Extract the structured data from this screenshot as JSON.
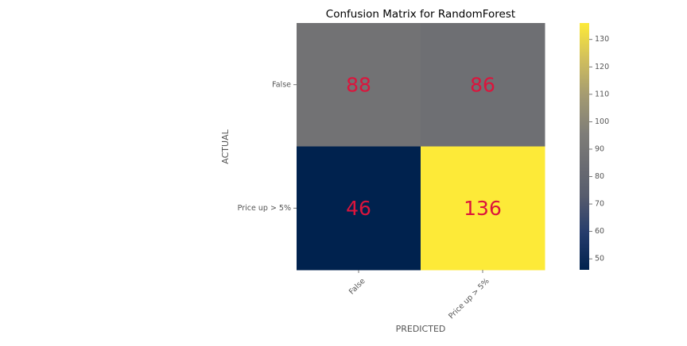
{
  "chart_data": {
    "type": "heatmap",
    "title": "Confusion Matrix for RandomForest",
    "xlabel": "PREDICTED",
    "ylabel": "ACTUAL",
    "x_categories": [
      "False",
      "Price up > 5%"
    ],
    "y_categories": [
      "False",
      "Price up > 5%"
    ],
    "values": [
      [
        88,
        86
      ],
      [
        46,
        136
      ]
    ],
    "annotation_color": "#dc143c",
    "colormap": "cividis",
    "colorbar": {
      "range": [
        46,
        136
      ],
      "ticks": [
        50,
        60,
        70,
        80,
        90,
        100,
        110,
        120,
        130
      ]
    }
  }
}
